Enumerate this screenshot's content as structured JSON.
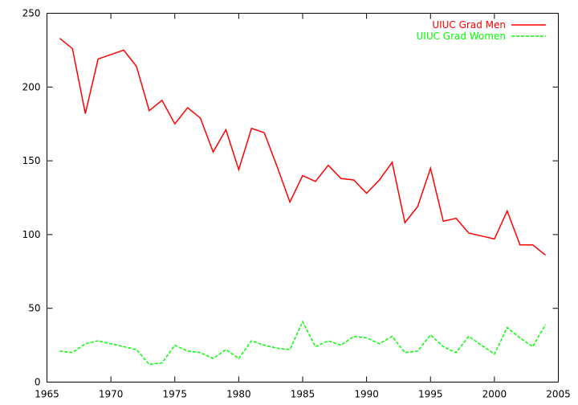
{
  "chart_data": {
    "type": "line",
    "title": "",
    "xlabel": "",
    "ylabel": "",
    "xlim": [
      1965,
      2005
    ],
    "ylim": [
      0,
      250
    ],
    "xticks": [
      1965,
      1970,
      1975,
      1980,
      1985,
      1990,
      1995,
      2000,
      2005
    ],
    "yticks": [
      0,
      50,
      100,
      150,
      200,
      250
    ],
    "grid": false,
    "legend_position": "top-right",
    "x": [
      1966,
      1967,
      1968,
      1969,
      1970,
      1971,
      1972,
      1973,
      1974,
      1975,
      1976,
      1977,
      1978,
      1979,
      1980,
      1981,
      1982,
      1983,
      1984,
      1985,
      1986,
      1987,
      1988,
      1989,
      1990,
      1991,
      1992,
      1993,
      1994,
      1995,
      1996,
      1997,
      1998,
      1999,
      2000,
      2001,
      2002,
      2003,
      2004
    ],
    "series": [
      {
        "name": "UIUC Grad Men",
        "color": "#ff0000",
        "dash": "solid",
        "values": [
          233,
          226,
          182,
          219,
          222,
          225,
          214,
          184,
          191,
          175,
          186,
          179,
          156,
          171,
          144,
          172,
          169,
          146,
          122,
          140,
          136,
          147,
          138,
          137,
          128,
          137,
          149,
          108,
          119,
          145,
          109,
          111,
          101,
          99,
          97,
          116,
          93,
          93,
          86
        ]
      },
      {
        "name": "UIUC Grad Women",
        "color": "#00ff00",
        "dash": "dashed",
        "values": [
          21,
          20,
          26,
          28,
          26,
          24,
          22,
          12,
          13,
          25,
          21,
          20,
          16,
          22,
          16,
          28,
          25,
          23,
          22,
          41,
          24,
          28,
          25,
          31,
          30,
          26,
          31,
          20,
          21,
          32,
          24,
          20,
          31,
          25,
          19,
          37,
          30,
          24,
          39
        ]
      }
    ]
  }
}
